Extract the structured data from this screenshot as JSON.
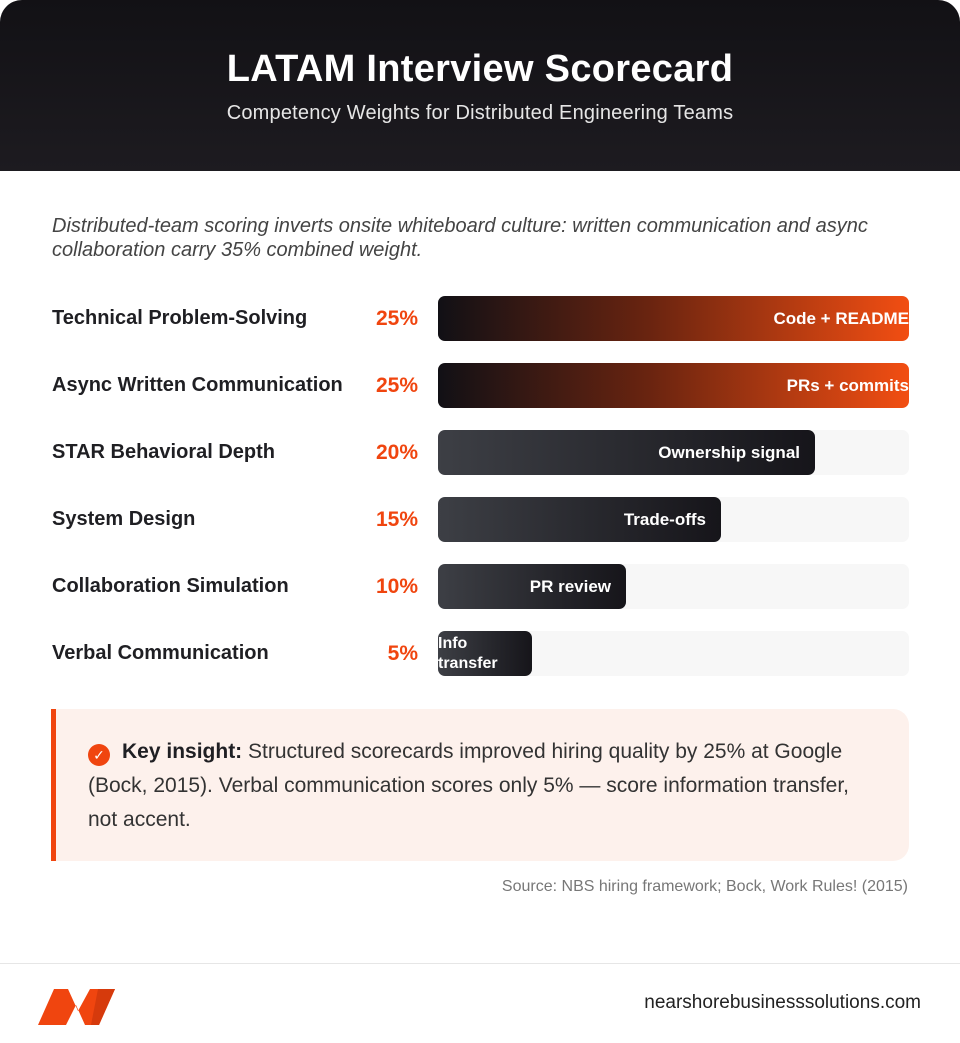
{
  "header": {
    "title": "LATAM Interview Scorecard",
    "subtitle": "Competency Weights for Distributed Engineering Teams"
  },
  "intro": "Distributed-team scoring inverts onsite whiteboard culture: written communication and async collaboration carry 35% combined weight.",
  "chart_data": {
    "type": "bar",
    "orientation": "horizontal",
    "categories": [
      "Technical Problem-Solving",
      "Async Written Communication",
      "STAR Behavioral Depth",
      "System Design",
      "Collaboration Simulation",
      "Verbal Communication"
    ],
    "values": [
      25,
      25,
      20,
      15,
      10,
      5
    ],
    "value_labels": [
      "25%",
      "25%",
      "20%",
      "15%",
      "10%",
      "5%"
    ],
    "bar_labels": [
      "Code + README",
      "PRs + commits",
      "Ownership signal",
      "Trade-offs",
      "PR review",
      "Info transfer"
    ],
    "xlim": [
      0,
      25
    ],
    "title": "",
    "xlabel": "",
    "ylabel": "",
    "grid": false,
    "colors": {
      "highlight": "#f0450f",
      "dark": "#1d1b20"
    }
  },
  "insight": {
    "heading": "Key insight:",
    "text": " Structured scorecards improved hiring quality by 25% at Google (Bock, 2015). Verbal communication scores only 5% — score information transfer, not accent."
  },
  "source": "Source: NBS hiring framework; Bock, Work Rules! (2015)",
  "footer": {
    "logo_icon": "nbs-logo-icon",
    "site": "nearshorebusinesssolutions.com"
  }
}
